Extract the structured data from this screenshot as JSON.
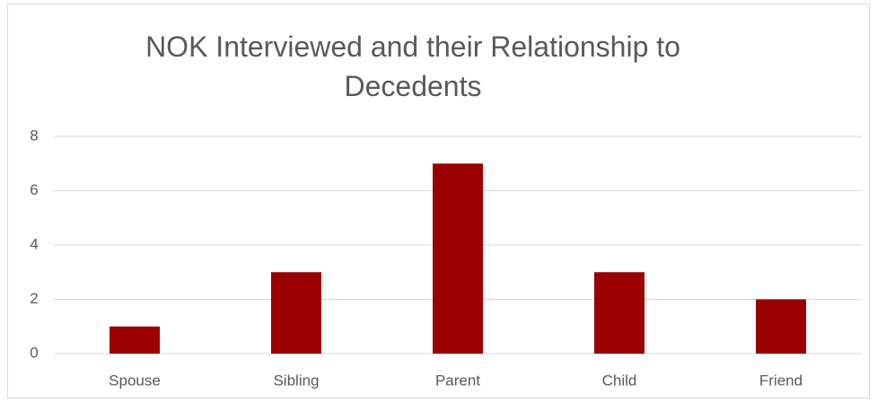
{
  "chart_data": {
    "type": "bar",
    "title": "NOK Interviewed and their Relationship to Decedents",
    "categories": [
      "Spouse",
      "Sibling",
      "Parent",
      "Child",
      "Friend"
    ],
    "values": [
      1,
      3,
      7,
      3,
      2
    ],
    "color": "#9b0000",
    "ylim": [
      0,
      8
    ],
    "yticks": [
      0,
      2,
      4,
      6,
      8
    ],
    "grid": true
  }
}
